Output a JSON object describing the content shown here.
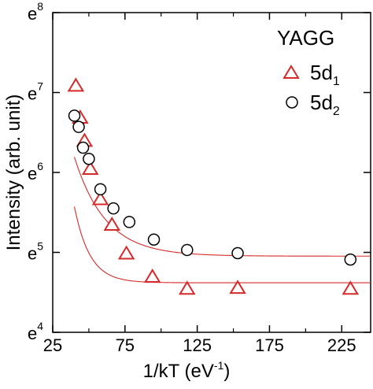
{
  "chart_data": {
    "type": "scatter",
    "xlabel": {
      "main": "1/kT (eV",
      "sup": "-1",
      "close": ")"
    },
    "ylabel": "Intensity (arb. unit)",
    "xlim": [
      25,
      245
    ],
    "ylim_ln": [
      4,
      8
    ],
    "y_scale": "log (base e)",
    "x_ticks": [
      25,
      75,
      125,
      175,
      225
    ],
    "y_ticks": [
      {
        "base": "e",
        "exp": "4",
        "ln": 4
      },
      {
        "base": "e",
        "exp": "5",
        "ln": 5
      },
      {
        "base": "e",
        "exp": "6",
        "ln": 6
      },
      {
        "base": "e",
        "exp": "7",
        "ln": 7
      },
      {
        "base": "e",
        "exp": "8",
        "ln": 8
      }
    ],
    "legend": {
      "title": "YAGG",
      "position": "top-right",
      "entries": [
        {
          "base": "5d",
          "sub": "1"
        },
        {
          "base": "5d",
          "sub": "2"
        }
      ]
    },
    "series": [
      {
        "name": "5d1",
        "marker": "triangle",
        "color": "#d42a2a",
        "points": [
          {
            "x": 41,
            "y_ln": 7.08
          },
          {
            "x": 44,
            "y_ln": 6.68
          },
          {
            "x": 47,
            "y_ln": 6.39
          },
          {
            "x": 51,
            "y_ln": 6.04
          },
          {
            "x": 58,
            "y_ln": 5.66
          },
          {
            "x": 66,
            "y_ln": 5.34
          },
          {
            "x": 76,
            "y_ln": 4.98
          },
          {
            "x": 94,
            "y_ln": 4.69
          },
          {
            "x": 118,
            "y_ln": 4.54
          },
          {
            "x": 153,
            "y_ln": 4.55
          },
          {
            "x": 231,
            "y_ln": 4.54
          }
        ],
        "fit": {
          "x_from": 40,
          "x_to": 245,
          "a": 4.62,
          "b": 40.1,
          "c": 0.0935
        }
      },
      {
        "name": "5d2",
        "marker": "circle",
        "color": "#000000",
        "points": [
          {
            "x": 40,
            "y_ln": 6.71
          },
          {
            "x": 43,
            "y_ln": 6.57
          },
          {
            "x": 46,
            "y_ln": 6.31
          },
          {
            "x": 50,
            "y_ln": 6.17
          },
          {
            "x": 58,
            "y_ln": 5.79
          },
          {
            "x": 67,
            "y_ln": 5.55
          },
          {
            "x": 78,
            "y_ln": 5.38
          },
          {
            "x": 95,
            "y_ln": 5.16
          },
          {
            "x": 118,
            "y_ln": 5.03
          },
          {
            "x": 153,
            "y_ln": 4.99
          },
          {
            "x": 231,
            "y_ln": 4.91
          }
        ],
        "fit": {
          "x_from": 40,
          "x_to": 245,
          "a": 4.953,
          "b": 7.9,
          "c": 0.0463
        }
      }
    ]
  }
}
